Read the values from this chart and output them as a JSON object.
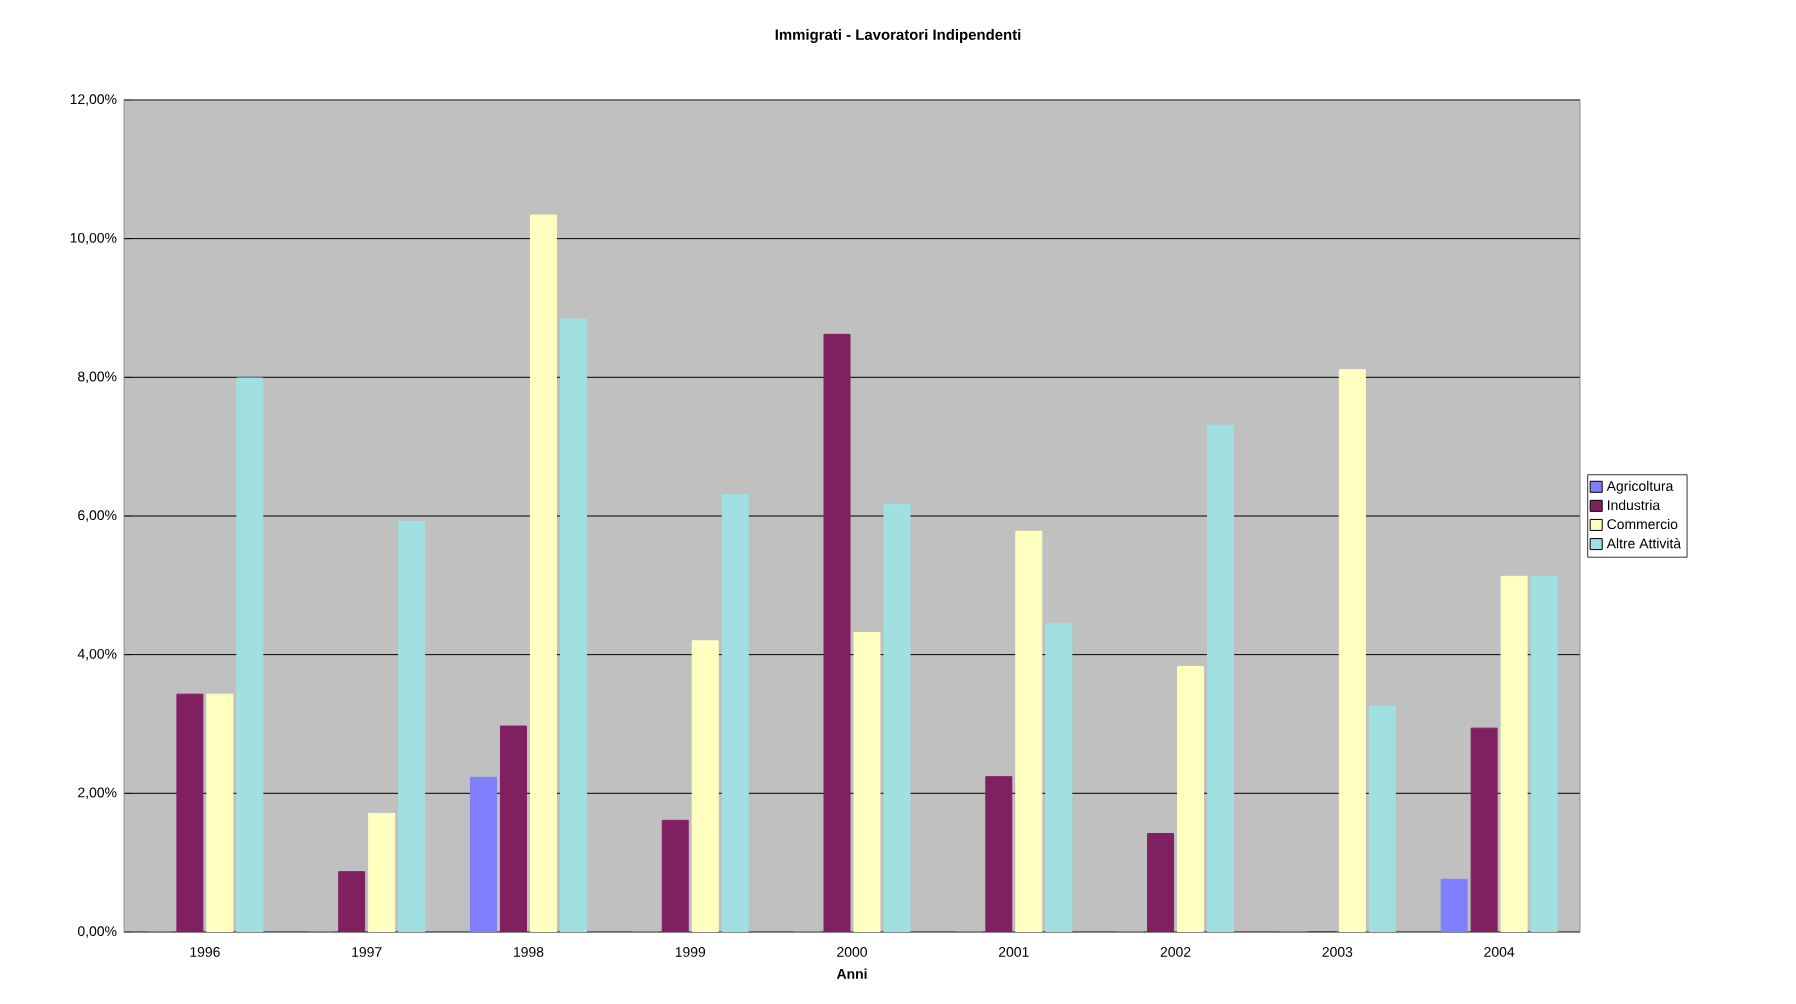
{
  "chart_data": {
    "type": "bar",
    "title": "Immigrati - Lavoratori Indipendenti",
    "xlabel": "Anni",
    "categories": [
      "1996",
      "1997",
      "1998",
      "1999",
      "2000",
      "2001",
      "2002",
      "2003",
      "2004"
    ],
    "series": [
      {
        "name": "Agricoltura",
        "color": "#8080ff",
        "values": [
          0,
          0,
          2.23,
          0,
          0,
          0,
          0,
          0,
          0.76
        ]
      },
      {
        "name": "Industria",
        "color": "#802060",
        "values": [
          3.43,
          0.87,
          2.97,
          1.61,
          8.62,
          2.24,
          1.42,
          0,
          2.94
        ]
      },
      {
        "name": "Commercio",
        "color": "#ffffc0",
        "values": [
          3.43,
          1.71,
          10.34,
          4.2,
          4.32,
          5.78,
          3.83,
          8.11,
          5.13
        ]
      },
      {
        "name": "Altre Attività",
        "color": "#a0e0e0",
        "values": [
          7.99,
          5.92,
          8.84,
          6.31,
          6.17,
          4.45,
          7.31,
          3.26,
          5.13
        ]
      }
    ],
    "ylim": [
      0,
      12
    ],
    "yticks": [
      {
        "value": 0,
        "label": "0,00%"
      },
      {
        "value": 2,
        "label": "2,00%"
      },
      {
        "value": 4,
        "label": "4,00%"
      },
      {
        "value": 6,
        "label": "6,00%"
      },
      {
        "value": 8,
        "label": "8,00%"
      },
      {
        "value": 10,
        "label": "10,00%"
      },
      {
        "value": 12,
        "label": "12,00%"
      }
    ],
    "grid": "y",
    "legend": "right"
  }
}
